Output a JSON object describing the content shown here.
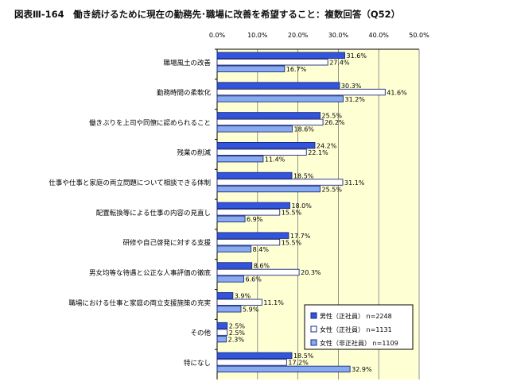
{
  "chart_data": {
    "type": "bar",
    "orientation": "horizontal",
    "title": "図表Ⅲ-164　働き続けるために現在の勤務先･職場に改善を希望すること：複数回答（Q52）",
    "xlim": [
      0,
      50
    ],
    "ticks": [
      "0.0%",
      "10.0%",
      "20.0%",
      "30.0%",
      "40.0%",
      "50.0%"
    ],
    "tick_values": [
      0,
      10,
      20,
      30,
      40,
      50
    ],
    "grid": true,
    "legend_position": "bottom-right",
    "plot_background": "#FFFFD4",
    "categories": [
      "職場風土の改善",
      "勤務時間の柔軟化",
      "働きぶりを上司や同僚に認められること",
      "残業の削減",
      "仕事や仕事と家庭の両立問題について相談できる体制",
      "配置転換等による仕事の内容の見直し",
      "研修や自己啓発に対する支援",
      "男女均等な待遇と公正な人事評価の徹底",
      "職場における仕事と家庭の両立支援施策の充実",
      "その他",
      "特になし"
    ],
    "series": [
      {
        "name": "男性（正社員）",
        "n": "n=2248",
        "color": "#3355DD",
        "values": [
          31.6,
          30.3,
          25.5,
          24.2,
          18.5,
          18.0,
          17.7,
          8.6,
          3.9,
          2.5,
          18.5
        ]
      },
      {
        "name": "女性（正社員）",
        "n": "n=1131",
        "color": "#FFFFFF",
        "values": [
          27.4,
          41.6,
          26.2,
          22.1,
          31.1,
          15.5,
          15.5,
          20.3,
          11.1,
          2.5,
          17.2
        ]
      },
      {
        "name": "女性（非正社員）",
        "n": "n=1109",
        "color": "#88AAEE",
        "values": [
          16.7,
          31.2,
          18.6,
          11.4,
          25.5,
          6.9,
          8.4,
          6.6,
          5.9,
          2.3,
          32.9
        ]
      }
    ]
  }
}
